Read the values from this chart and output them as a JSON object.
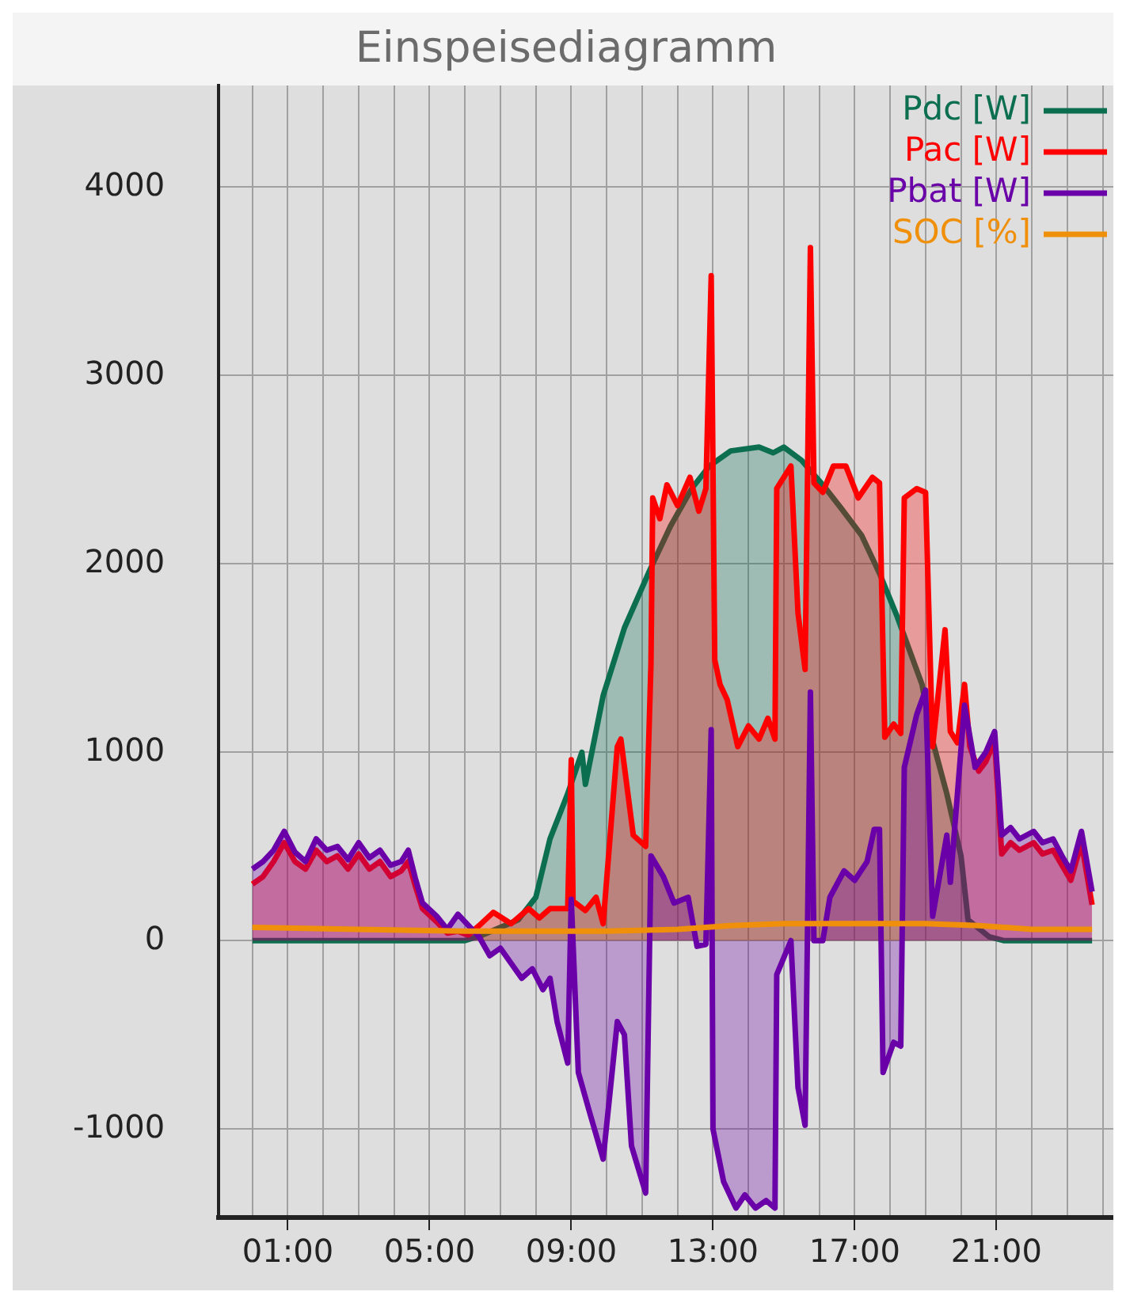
{
  "chart_data": {
    "type": "area",
    "title": "Einspeisediagramm",
    "xlim": [
      -0.95,
      24.3
    ],
    "xticks": [
      {
        "value": 0,
        "label": null
      },
      {
        "value": 1,
        "label": "01:00"
      },
      {
        "value": 2,
        "label": null
      },
      {
        "value": 3,
        "label": null
      },
      {
        "value": 4,
        "label": null
      },
      {
        "value": 5,
        "label": "05:00"
      },
      {
        "value": 6,
        "label": null
      },
      {
        "value": 7,
        "label": null
      },
      {
        "value": 8,
        "label": null
      },
      {
        "value": 9,
        "label": "09:00"
      },
      {
        "value": 10,
        "label": null
      },
      {
        "value": 11,
        "label": null
      },
      {
        "value": 12,
        "label": null
      },
      {
        "value": 13,
        "label": "13:00"
      },
      {
        "value": 14,
        "label": null
      },
      {
        "value": 15,
        "label": null
      },
      {
        "value": 16,
        "label": null
      },
      {
        "value": 17,
        "label": "17:00"
      },
      {
        "value": 18,
        "label": null
      },
      {
        "value": 19,
        "label": null
      },
      {
        "value": 20,
        "label": null
      },
      {
        "value": 21,
        "label": "21:00"
      },
      {
        "value": 22,
        "label": null
      },
      {
        "value": 23,
        "label": null
      },
      {
        "value": 24,
        "label": null
      }
    ],
    "ylim": [
      -1470,
      4540
    ],
    "yticks": [
      -1000,
      0,
      1000,
      2000,
      3000,
      4000
    ],
    "grid": true,
    "legend": "top right",
    "marker": "none",
    "line_style": "solid",
    "series": [
      {
        "name": "Pdc [W]",
        "color": "#0b6e4f",
        "x": [
          0,
          6.0,
          6.5,
          7.0,
          7.5,
          8.0,
          8.4,
          8.9,
          9.3,
          9.4,
          9.9,
          10.5,
          11.2,
          11.8,
          12.4,
          12.9,
          13.5,
          14.3,
          14.7,
          15.0,
          15.5,
          16.1,
          16.6,
          17.2,
          17.7,
          18.2,
          18.9,
          19.2,
          19.6,
          20.0,
          20.2,
          20.8,
          21.2,
          23.7
        ],
        "values": [
          0,
          0,
          30,
          70,
          110,
          230,
          540,
          780,
          1000,
          830,
          1300,
          1660,
          1960,
          2200,
          2400,
          2520,
          2600,
          2620,
          2590,
          2620,
          2550,
          2420,
          2300,
          2150,
          1950,
          1720,
          1360,
          1060,
          780,
          450,
          110,
          20,
          0,
          0
        ]
      },
      {
        "name": "Pac [W]",
        "color": "#ff0000",
        "x": [
          0,
          0.3,
          0.6,
          0.9,
          1.2,
          1.5,
          1.8,
          2.1,
          2.4,
          2.7,
          3.0,
          3.3,
          3.6,
          3.9,
          4.2,
          4.4,
          4.6,
          4.8,
          5.2,
          5.5,
          5.8,
          6.1,
          6.4,
          6.8,
          7.3,
          7.8,
          8.1,
          8.4,
          8.9,
          9.0,
          9.05,
          9.4,
          9.7,
          9.9,
          10.3,
          10.4,
          10.75,
          11.1,
          11.25,
          11.3,
          11.5,
          11.7,
          12.0,
          12.35,
          12.6,
          12.8,
          12.95,
          13.05,
          13.2,
          13.4,
          13.7,
          14.0,
          14.3,
          14.55,
          14.75,
          14.8,
          15.2,
          15.4,
          15.6,
          15.75,
          15.85,
          16.1,
          16.4,
          16.75,
          17.1,
          17.5,
          17.7,
          17.85,
          18.1,
          18.3,
          18.4,
          18.75,
          19.0,
          19.2,
          19.55,
          19.7,
          19.9,
          20.1,
          20.25,
          20.5,
          20.7,
          20.95,
          21.15,
          21.4,
          21.65,
          22.05,
          22.3,
          22.6,
          22.85,
          23.1,
          23.4,
          23.7
        ],
        "values": [
          300,
          340,
          420,
          520,
          420,
          380,
          480,
          420,
          450,
          380,
          460,
          380,
          420,
          340,
          370,
          420,
          290,
          170,
          100,
          40,
          50,
          30,
          80,
          150,
          90,
          170,
          120,
          170,
          170,
          960,
          210,
          160,
          230,
          90,
          1030,
          1070,
          560,
          500,
          1470,
          2350,
          2240,
          2420,
          2310,
          2460,
          2280,
          2400,
          3530,
          1490,
          1360,
          1280,
          1030,
          1140,
          1070,
          1180,
          1070,
          2400,
          2520,
          1740,
          1440,
          3680,
          2430,
          2380,
          2520,
          2520,
          2350,
          2460,
          2430,
          1080,
          1150,
          1100,
          2350,
          2400,
          2380,
          1030,
          1650,
          1110,
          1050,
          1360,
          1030,
          900,
          950,
          1060,
          460,
          520,
          480,
          520,
          460,
          480,
          400,
          320,
          520,
          190
        ]
      },
      {
        "name": "Pbat [W]",
        "color": "#6a00a8",
        "x": [
          0,
          0.3,
          0.6,
          0.9,
          1.2,
          1.5,
          1.8,
          2.1,
          2.4,
          2.7,
          3.0,
          3.3,
          3.6,
          3.9,
          4.2,
          4.4,
          4.6,
          4.8,
          5.2,
          5.5,
          5.8,
          6.1,
          6.4,
          6.7,
          7.0,
          7.3,
          7.6,
          7.9,
          8.2,
          8.4,
          8.6,
          8.9,
          9.0,
          9.2,
          9.5,
          9.9,
          10.3,
          10.5,
          10.7,
          11.1,
          11.25,
          11.6,
          11.9,
          12.3,
          12.55,
          12.8,
          12.95,
          13.0,
          13.3,
          13.65,
          13.9,
          14.2,
          14.5,
          14.75,
          14.8,
          15.2,
          15.4,
          15.6,
          15.75,
          15.85,
          16.1,
          16.3,
          16.7,
          17.0,
          17.35,
          17.55,
          17.7,
          17.8,
          18.1,
          18.3,
          18.4,
          18.75,
          19.0,
          19.2,
          19.6,
          19.7,
          20.1,
          20.4,
          20.7,
          20.95,
          21.15,
          21.4,
          21.65,
          22.05,
          22.3,
          22.6,
          22.85,
          23.1,
          23.4,
          23.7
        ],
        "values": [
          380,
          420,
          480,
          580,
          470,
          420,
          540,
          480,
          500,
          430,
          520,
          440,
          480,
          400,
          420,
          480,
          330,
          200,
          130,
          60,
          140,
          80,
          20,
          -80,
          -40,
          -120,
          -200,
          -150,
          -260,
          -200,
          -430,
          -650,
          220,
          -700,
          -900,
          -1160,
          -430,
          -500,
          -1090,
          -1340,
          450,
          340,
          200,
          230,
          -30,
          -20,
          1120,
          -1000,
          -1280,
          -1420,
          -1350,
          -1420,
          -1380,
          -1420,
          -180,
          0,
          -780,
          -980,
          1320,
          0,
          0,
          230,
          370,
          320,
          420,
          590,
          590,
          -700,
          -540,
          -560,
          920,
          1200,
          1330,
          130,
          560,
          310,
          1250,
          920,
          1000,
          1110,
          560,
          600,
          540,
          580,
          520,
          540,
          450,
          370,
          580,
          260
        ]
      },
      {
        "name": "SOC [%]",
        "color": "#f0900a",
        "type": "line",
        "x": [
          0,
          3,
          6,
          8,
          10,
          12,
          13.5,
          15,
          17.5,
          19,
          20.5,
          22,
          23.7
        ],
        "values": [
          70,
          60,
          50,
          50,
          50,
          60,
          80,
          90,
          90,
          90,
          80,
          60,
          60
        ]
      }
    ]
  }
}
